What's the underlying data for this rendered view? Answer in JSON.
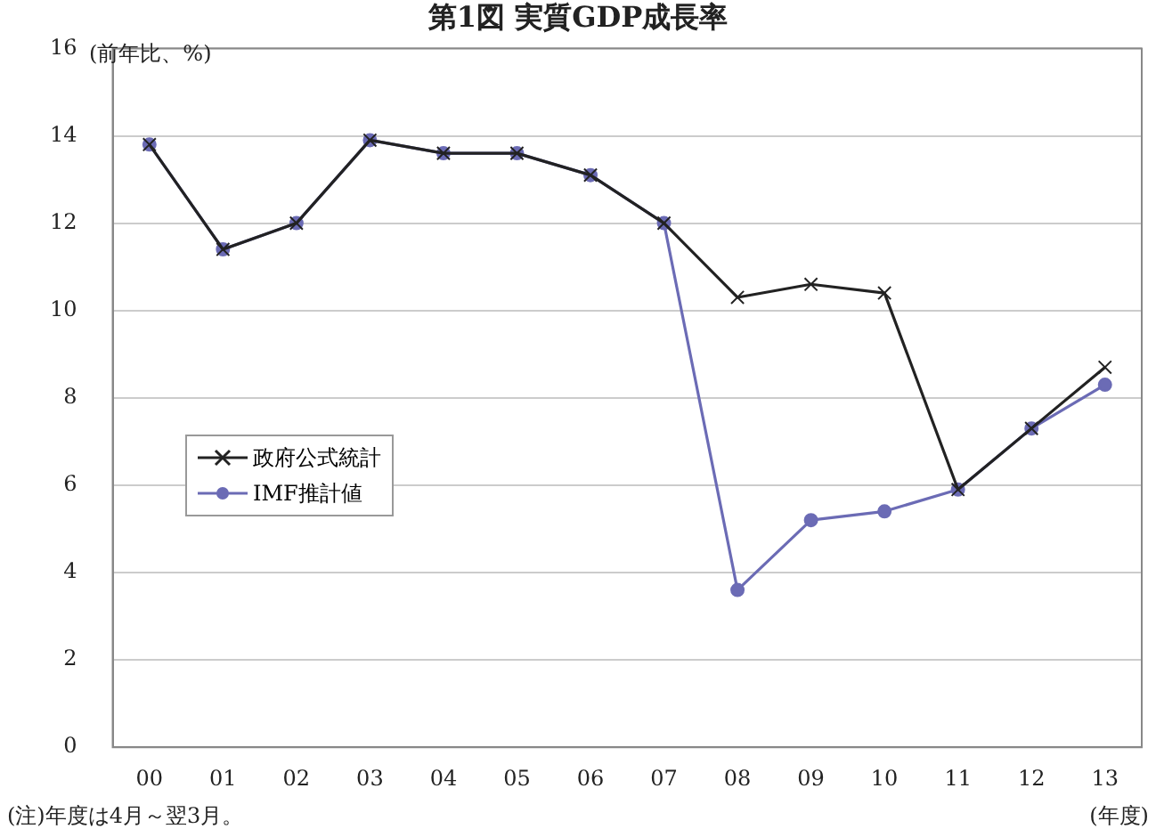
{
  "chart_data": {
    "type": "line",
    "title": "第1図 実質GDP成長率",
    "ylabel": "(前年比、%)",
    "xlabel": "(年度)",
    "annotations": [
      "(注)年度は4月～翌3月。"
    ],
    "categories": [
      "00",
      "01",
      "02",
      "03",
      "04",
      "05",
      "06",
      "07",
      "08",
      "09",
      "10",
      "11",
      "12",
      "13"
    ],
    "series": [
      {
        "name": "政府公式統計",
        "color": "#222222",
        "marker": "cross",
        "values": [
          13.8,
          11.4,
          12.0,
          13.9,
          13.6,
          13.6,
          13.1,
          12.0,
          10.3,
          10.6,
          10.4,
          5.9,
          7.3,
          8.7
        ]
      },
      {
        "name": "IMF推計値",
        "color": "#6b6bb5",
        "marker": "circle",
        "values": [
          13.8,
          11.4,
          12.0,
          13.9,
          13.6,
          13.6,
          13.1,
          12.0,
          3.6,
          5.2,
          5.4,
          5.9,
          7.3,
          8.3
        ]
      }
    ],
    "ylim": [
      0,
      16
    ],
    "yticks": [
      0,
      2,
      4,
      6,
      8,
      10,
      12,
      14,
      16
    ],
    "grid": "y",
    "legend": "left",
    "line_style": "solid"
  }
}
